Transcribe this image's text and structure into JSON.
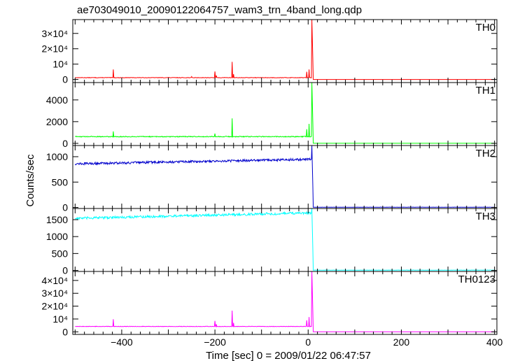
{
  "chart_data": {
    "type": "line",
    "title": "ae703049010_20090122064757_wam3_trn_4band_long.qdp",
    "xlabel": "Time [sec] 0 = 2009/01/22 06:47:57",
    "ylabel": "Counts/sec",
    "xlim": [
      -505,
      405
    ],
    "x_ticks": [
      -400,
      -200,
      0,
      200,
      400
    ],
    "grid": false,
    "panels": [
      {
        "name": "TH0",
        "color": "#ff0000",
        "ylim": [
          -2000,
          39000
        ],
        "y_ticks": [
          {
            "v": 0,
            "label": "0"
          },
          {
            "v": 10000,
            "label": "10⁴"
          },
          {
            "v": 20000,
            "label": "2×10⁴"
          },
          {
            "v": 30000,
            "label": "3×10⁴"
          }
        ],
        "baseline": 1200,
        "noise": 150,
        "post": 1,
        "peak": 39000,
        "spikes": [
          [
            -418,
            6500
          ],
          [
            -250,
            1900
          ],
          [
            -200,
            5200
          ],
          [
            -197,
            2600
          ],
          [
            -163,
            11500
          ],
          [
            -160,
            3500
          ],
          [
            -3,
            5000
          ],
          [
            2,
            6500
          ]
        ]
      },
      {
        "name": "TH1",
        "color": "#00ff00",
        "ylim": [
          -200,
          5600
        ],
        "y_ticks": [
          {
            "v": 0,
            "label": "0"
          },
          {
            "v": 2000,
            "label": "2000"
          },
          {
            "v": 4000,
            "label": "4000"
          }
        ],
        "baseline": 620,
        "noise": 40,
        "post": 10,
        "peak": 5600,
        "spikes": [
          [
            -418,
            1100
          ],
          [
            -200,
            900
          ],
          [
            -163,
            2300
          ],
          [
            -3,
            1300
          ],
          [
            2,
            1800
          ]
        ]
      },
      {
        "name": "TH2",
        "color": "#0000cc",
        "ylim": [
          -20,
          1220
        ],
        "y_ticks": [
          {
            "v": 0,
            "label": "0"
          },
          {
            "v": 500,
            "label": "500"
          },
          {
            "v": 1000,
            "label": "1000"
          }
        ],
        "baseline": 860,
        "baseline_end": 950,
        "noise": 22,
        "post": 5,
        "peak": 1220,
        "spikes": []
      },
      {
        "name": "TH3",
        "color": "#00ffff",
        "ylim": [
          -30,
          1830
        ],
        "y_ticks": [
          {
            "v": 0,
            "label": "0"
          },
          {
            "v": 500,
            "label": "500"
          },
          {
            "v": 1000,
            "label": "1000"
          },
          {
            "v": 1500,
            "label": "1500"
          }
        ],
        "baseline": 1540,
        "baseline_end": 1700,
        "noise": 35,
        "post": 8,
        "peak": 1830,
        "spikes": []
      },
      {
        "name": "TH0123",
        "color": "#ff00ff",
        "ylim": [
          -2000,
          47000
        ],
        "y_ticks": [
          {
            "v": 0,
            "label": "0"
          },
          {
            "v": 10000,
            "label": "10⁴"
          },
          {
            "v": 20000,
            "label": "2×10⁴"
          },
          {
            "v": 30000,
            "label": "3×10⁴"
          },
          {
            "v": 40000,
            "label": "4×10⁴"
          }
        ],
        "baseline": 4200,
        "noise": 180,
        "post": 25,
        "peak": 47000,
        "spikes": [
          [
            -418,
            9800
          ],
          [
            -200,
            8500
          ],
          [
            -197,
            6000
          ],
          [
            -163,
            16500
          ],
          [
            -160,
            7000
          ],
          [
            -3,
            9000
          ],
          [
            2,
            11500
          ]
        ]
      }
    ]
  }
}
